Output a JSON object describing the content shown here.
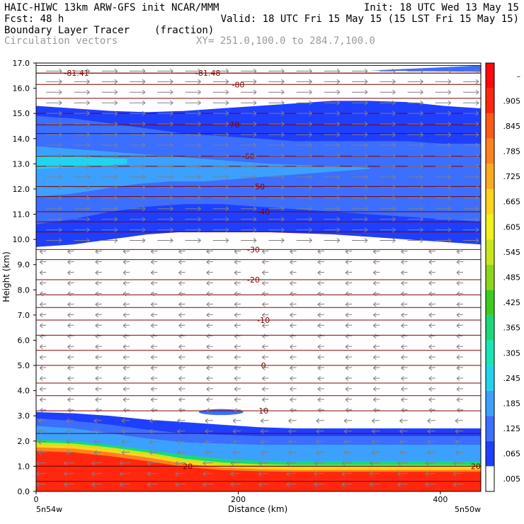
{
  "header": {
    "left_line1": "HAIC-HIWC 13km ARW-GFS init   NCAR/MMM",
    "left_line2": "Fcst:   48 h",
    "right_line1": "Init: 18 UTC Wed 13 May 15",
    "right_line2": "Valid: 18 UTC Fri 15 May 15 (15 LST Fri 15 May 15)",
    "field_name": "Boundary Layer Tracer",
    "field_units": "(fraction)",
    "vector_name": "Circulation vectors",
    "xy_text": "XY= 251.0,100.0 to 284.7,100.0"
  },
  "colors": {
    "tracer_levels": [
      "#ffffff",
      "#1f3fff",
      "#3c6eff",
      "#3ca0ff",
      "#22d3ee",
      "#19e6b4",
      "#1ad87a",
      "#3ccc1e",
      "#8cd61a",
      "#c8e61a",
      "#f0f01a",
      "#ffd21e",
      "#ffaa1e",
      "#ff821e",
      "#ff5a14",
      "#ff280f",
      "#ff0a0a"
    ],
    "isotherm": "#800000",
    "vectors": "#808080"
  },
  "chart_data": {
    "type": "heatmap",
    "title": "Boundary Layer Tracer",
    "units": "(fraction)",
    "xlabel": "Distance (km)",
    "ylabel": "Height (km)",
    "xlim": [
      0,
      440
    ],
    "ylim": [
      0,
      17
    ],
    "x_ticks": [
      "0",
      "200",
      "400"
    ],
    "x_tick_values": [
      0,
      200,
      400
    ],
    "x_end_labels": [
      "5n54w",
      "5n50w"
    ],
    "y_ticks": [
      "0.0",
      "1.0",
      "2.0",
      "3.0",
      "4.0",
      "5.0",
      "6.0",
      "7.0",
      "8.0",
      "9.0",
      "10.0",
      "11.0",
      "12.0",
      "13.0",
      "14.0",
      "15.0",
      "16.0",
      "17.0"
    ],
    "y_tick_values": [
      0,
      1,
      2,
      3,
      4,
      5,
      6,
      7,
      8,
      9,
      10,
      11,
      12,
      13,
      14,
      15,
      16,
      17
    ],
    "colorbar_labels": [
      ".005",
      ".065",
      ".125",
      ".185",
      ".245",
      ".305",
      ".365",
      ".425",
      ".485",
      ".545",
      ".605",
      ".665",
      ".725",
      ".785",
      ".845",
      ".905",
      "–"
    ],
    "colorbar_values": [
      0.005,
      0.065,
      0.125,
      0.185,
      0.245,
      0.305,
      0.365,
      0.425,
      0.485,
      0.545,
      0.605,
      0.665,
      0.725,
      0.785,
      0.845,
      0.905,
      null
    ],
    "tracer_bands": [
      {
        "level": 1,
        "top": [
          3.15,
          3.1,
          3.0,
          2.85,
          2.75,
          2.65,
          2.55,
          2.5,
          2.5,
          2.5,
          2.5,
          2.5,
          2.5
        ]
      },
      {
        "level": 2,
        "top": [
          2.9,
          2.8,
          2.65,
          2.45,
          2.3,
          2.25,
          2.2,
          2.2,
          2.2,
          2.2,
          2.2,
          2.2,
          2.2
        ]
      },
      {
        "level": 3,
        "top": [
          2.6,
          2.5,
          2.3,
          2.1,
          1.95,
          1.9,
          1.85,
          1.85,
          1.85,
          1.85,
          1.85,
          1.85,
          1.85
        ]
      },
      {
        "level": 6,
        "top": [
          2.05,
          2.0,
          1.85,
          1.65,
          1.45,
          1.3,
          1.22,
          1.2,
          1.2,
          1.2,
          1.2,
          1.2,
          1.2
        ]
      },
      {
        "level": 9,
        "top": [
          1.95,
          1.9,
          1.75,
          1.55,
          1.3,
          1.15,
          1.08,
          1.05,
          1.05,
          1.05,
          1.05,
          1.05,
          1.05
        ]
      },
      {
        "level": 11,
        "top": [
          1.85,
          1.8,
          1.65,
          1.45,
          1.2,
          1.05,
          0.98,
          0.95,
          0.95,
          0.95,
          0.95,
          0.95,
          0.95
        ]
      },
      {
        "level": 13,
        "top": [
          1.75,
          1.7,
          1.55,
          1.35,
          1.1,
          0.95,
          0.88,
          0.85,
          0.85,
          0.85,
          0.85,
          0.85,
          0.85
        ]
      },
      {
        "level": 15,
        "top": [
          1.6,
          1.55,
          1.4,
          1.2,
          0.98,
          0.85,
          0.8,
          0.78,
          0.78,
          0.78,
          0.78,
          0.78,
          0.78
        ]
      }
    ],
    "upper_band": {
      "level": 1,
      "bottom": [
        9.7,
        9.8,
        10.0,
        10.2,
        10.3,
        10.3,
        10.3,
        10.25,
        10.2,
        10.1,
        10.0,
        9.9,
        9.8
      ],
      "top": [
        15.3,
        15.2,
        15.1,
        15.05,
        15.1,
        15.2,
        15.3,
        15.4,
        15.5,
        15.5,
        15.45,
        15.3,
        15.2
      ]
    },
    "upper_core": [
      {
        "level": 2,
        "x": [
          0,
          440
        ],
        "bottom": [
          10.6,
          10.8,
          11.1,
          11.3,
          11.4,
          11.4,
          11.3,
          11.2,
          11.1,
          11.0,
          10.9,
          10.8,
          10.7
        ],
        "top": [
          14.9,
          14.8,
          14.6,
          14.4,
          14.2,
          14.1,
          14.0,
          13.9,
          13.9,
          13.9,
          13.9,
          13.8,
          13.8
        ]
      },
      {
        "level": 3,
        "x": [
          0,
          330
        ],
        "bottom": [
          11.7,
          11.8,
          12.0,
          12.2,
          12.3,
          12.3,
          12.4,
          12.5,
          12.6,
          12.7,
          12.8
        ],
        "top": [
          13.7,
          13.6,
          13.5,
          13.4,
          13.3,
          13.2,
          13.1,
          13.0,
          12.95,
          12.9,
          12.85
        ]
      },
      {
        "level": 4,
        "x": [
          0,
          90
        ],
        "bottom": [
          12.8,
          12.85,
          12.9,
          13.0
        ],
        "top": [
          13.35,
          13.3,
          13.25,
          13.2
        ]
      }
    ],
    "small_blob": {
      "level": 2,
      "x": 183,
      "y": 3.15,
      "rx": 22,
      "ry": 0.12
    },
    "top_streak": {
      "level": 2,
      "x": [
        330,
        440
      ],
      "y": [
        16.7,
        16.9
      ]
    },
    "isotherms": [
      {
        "label": "-81.41",
        "label_x": 40,
        "y": 16.6
      },
      {
        "label": "-81.48",
        "label_x": 170,
        "y": 16.6
      },
      {
        "label": "-80",
        "label_x": 200,
        "y": 16.15
      },
      {
        "label": "-70",
        "label_x": 195,
        "y": 14.55
      },
      {
        "label": "-60",
        "label_x": 210,
        "y": 13.3
      },
      {
        "label": "-50",
        "label_x": 220,
        "y": 12.1
      },
      {
        "label": "-40",
        "label_x": 225,
        "y": 11.1
      },
      {
        "label": "-30",
        "label_x": 215,
        "y": 9.6
      },
      {
        "label": "-20",
        "label_x": 215,
        "y": 8.4
      },
      {
        "label": "-10",
        "label_x": 225,
        "y": 6.8
      },
      {
        "label": "0",
        "label_x": 225,
        "y": 5.0
      },
      {
        "label": "10",
        "label_x": 225,
        "y": 3.2
      },
      {
        "label": "20",
        "label_x": 150,
        "y": 1.0
      },
      {
        "label": "20",
        "label_x": 435,
        "y": 1.0
      }
    ],
    "isotherm_extra_y": [
      16.9,
      15.6,
      15.0,
      14.2,
      12.9,
      11.7,
      10.7,
      10.3,
      9.2,
      7.8,
      7.3,
      6.2,
      5.6,
      4.3,
      3.8,
      2.3,
      0.4
    ]
  }
}
